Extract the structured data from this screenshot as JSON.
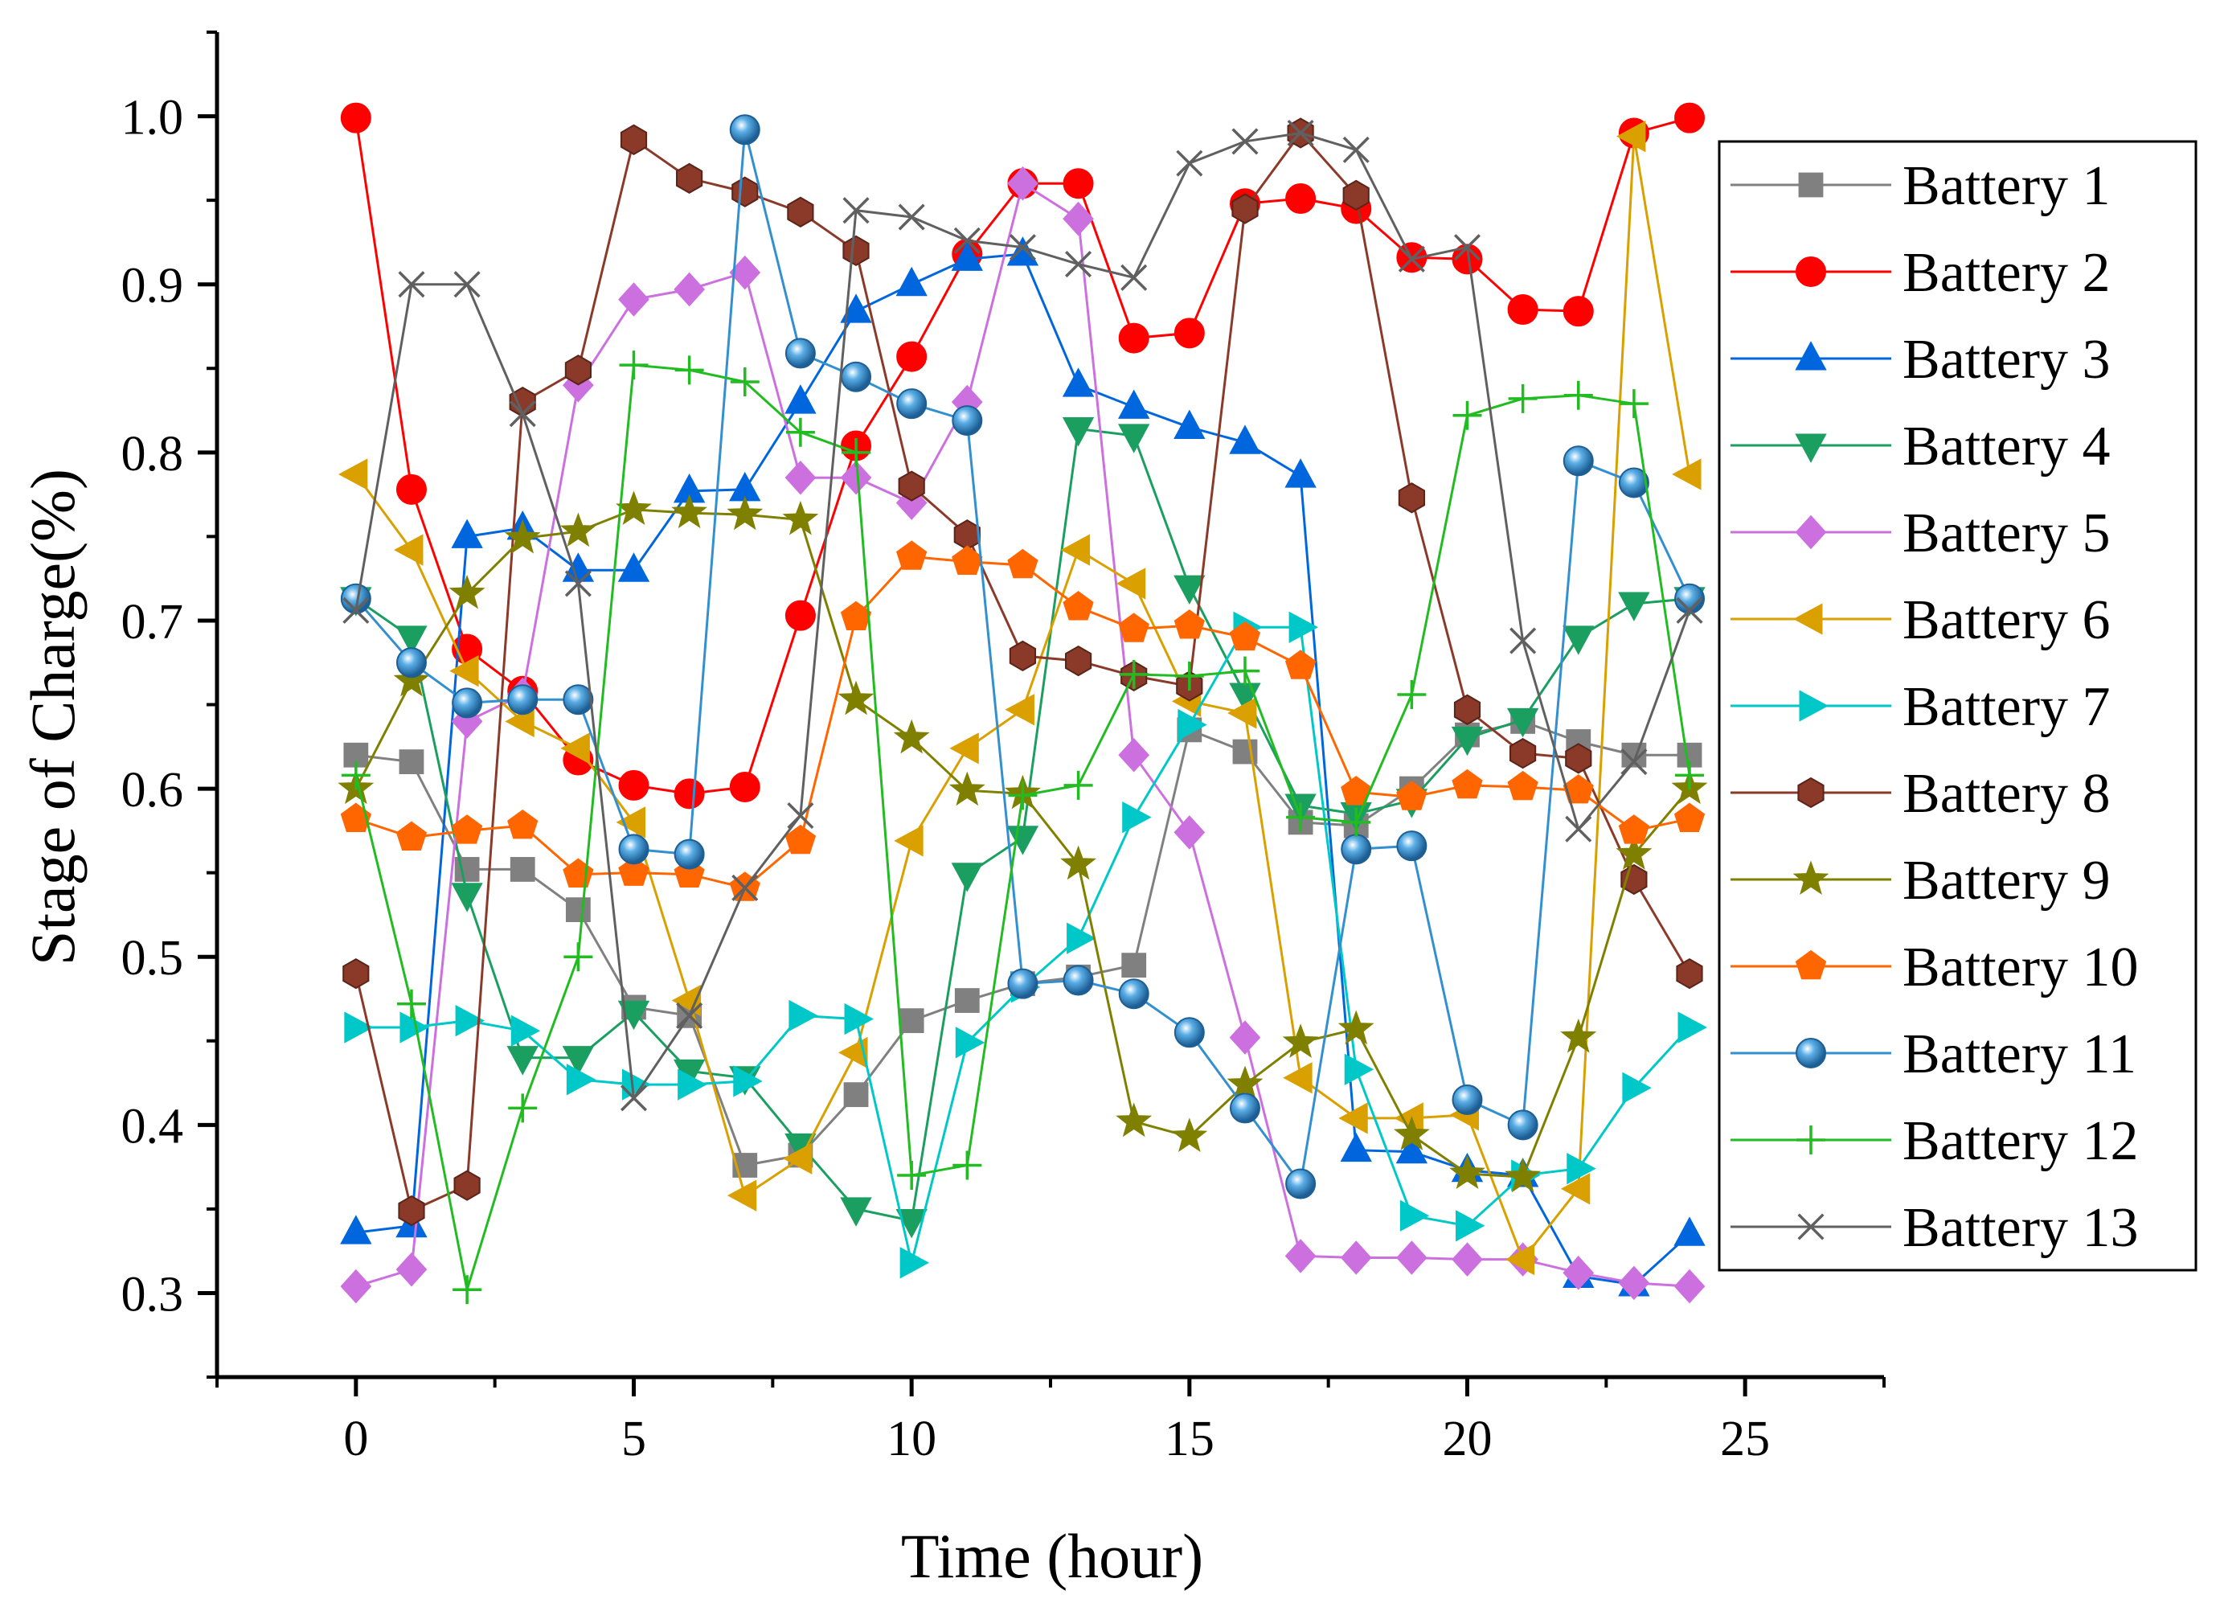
{
  "chart_data": {
    "type": "line",
    "title": "",
    "xlabel": "Time (hour)",
    "ylabel": "Stage of Charge(%)",
    "xlim": [
      -2.5,
      27.5
    ],
    "ylim": [
      0.25,
      1.05
    ],
    "xticks": [
      0,
      5,
      10,
      15,
      20,
      25
    ],
    "yticks": [
      0.3,
      0.4,
      0.5,
      0.6,
      0.7,
      0.8,
      0.9,
      1.0
    ],
    "xtick_labels": [
      "0",
      "5",
      "10",
      "15",
      "20",
      "25"
    ],
    "ytick_labels": [
      "0.3",
      "0.4",
      "0.5",
      "0.6",
      "0.7",
      "0.8",
      "0.9",
      "1.0"
    ],
    "grid": false,
    "legend_position": "right",
    "x": [
      0,
      1,
      2,
      3,
      4,
      5,
      6,
      7,
      8,
      9,
      10,
      11,
      12,
      13,
      14,
      15,
      16,
      17,
      18,
      19,
      20,
      21,
      22,
      23,
      24
    ],
    "series": [
      {
        "name": "Battery 1",
        "color": "#808080",
        "marker": "square",
        "values": [
          0.62,
          0.616,
          0.552,
          0.552,
          0.528,
          0.47,
          0.465,
          0.376,
          0.382,
          0.418,
          0.462,
          0.474,
          0.484,
          0.488,
          0.495,
          0.635,
          0.622,
          0.58,
          0.578,
          0.6,
          0.632,
          0.64,
          0.628,
          0.62,
          0.62
        ]
      },
      {
        "name": "Battery 2",
        "color": "#ff0000",
        "marker": "circle",
        "values": [
          0.999,
          0.778,
          0.683,
          0.658,
          0.617,
          0.602,
          0.597,
          0.601,
          0.703,
          0.804,
          0.857,
          0.918,
          0.96,
          0.96,
          0.868,
          0.871,
          0.948,
          0.951,
          0.945,
          0.916,
          0.915,
          0.885,
          0.884,
          0.99,
          0.999
        ]
      },
      {
        "name": "Battery 3",
        "color": "#0066dd",
        "marker": "triangle-up",
        "values": [
          0.336,
          0.34,
          0.75,
          0.755,
          0.73,
          0.73,
          0.777,
          0.778,
          0.83,
          0.884,
          0.9,
          0.915,
          0.918,
          0.84,
          0.827,
          0.815,
          0.806,
          0.786,
          0.385,
          0.384,
          0.373,
          0.37,
          0.31,
          0.305,
          0.335
        ]
      },
      {
        "name": "Battery 4",
        "color": "#1a9f60",
        "marker": "triangle-down",
        "values": [
          0.713,
          0.69,
          0.537,
          0.44,
          0.44,
          0.467,
          0.432,
          0.428,
          0.388,
          0.35,
          0.343,
          0.549,
          0.571,
          0.814,
          0.81,
          0.72,
          0.656,
          0.59,
          0.585,
          0.593,
          0.63,
          0.641,
          0.69,
          0.71,
          0.713
        ]
      },
      {
        "name": "Battery 5",
        "color": "#cc70e0",
        "marker": "diamond",
        "values": [
          0.304,
          0.314,
          0.64,
          0.656,
          0.84,
          0.891,
          0.897,
          0.907,
          0.785,
          0.785,
          0.77,
          0.83,
          0.96,
          0.939,
          0.62,
          0.574,
          0.452,
          0.322,
          0.321,
          0.321,
          0.32,
          0.32,
          0.312,
          0.306,
          0.304
        ]
      },
      {
        "name": "Battery 6",
        "color": "#d9a000",
        "marker": "triangle-left",
        "values": [
          0.787,
          0.742,
          0.67,
          0.64,
          0.624,
          0.58,
          0.474,
          0.358,
          0.38,
          0.443,
          0.569,
          0.624,
          0.647,
          0.742,
          0.722,
          0.652,
          0.645,
          0.428,
          0.404,
          0.404,
          0.406,
          0.32,
          0.362,
          0.988,
          0.787
        ]
      },
      {
        "name": "Battery 7",
        "color": "#00c8c8",
        "marker": "triangle-right",
        "values": [
          0.458,
          0.458,
          0.462,
          0.456,
          0.427,
          0.424,
          0.424,
          0.426,
          0.465,
          0.463,
          0.318,
          0.449,
          0.482,
          0.511,
          0.583,
          0.638,
          0.696,
          0.696,
          0.433,
          0.346,
          0.34,
          0.37,
          0.374,
          0.422,
          0.458
        ]
      },
      {
        "name": "Battery 8",
        "color": "#8b3a2a",
        "marker": "hexagon",
        "values": [
          0.49,
          0.349,
          0.364,
          0.83,
          0.849,
          0.986,
          0.963,
          0.955,
          0.943,
          0.92,
          0.78,
          0.751,
          0.679,
          0.676,
          0.667,
          0.661,
          0.945,
          0.99,
          0.953,
          0.773,
          0.647,
          0.621,
          0.618,
          0.546,
          0.49
        ]
      },
      {
        "name": "Battery 9",
        "color": "#808000",
        "marker": "star",
        "values": [
          0.6,
          0.664,
          0.716,
          0.749,
          0.753,
          0.766,
          0.764,
          0.763,
          0.76,
          0.653,
          0.63,
          0.599,
          0.597,
          0.555,
          0.402,
          0.393,
          0.424,
          0.449,
          0.457,
          0.394,
          0.371,
          0.369,
          0.452,
          0.561,
          0.6
        ]
      },
      {
        "name": "Battery 10",
        "color": "#ff6600",
        "marker": "pentagon",
        "values": [
          0.582,
          0.571,
          0.575,
          0.578,
          0.549,
          0.55,
          0.549,
          0.541,
          0.569,
          0.702,
          0.738,
          0.735,
          0.733,
          0.708,
          0.695,
          0.697,
          0.69,
          0.673,
          0.598,
          0.595,
          0.602,
          0.601,
          0.599,
          0.575,
          0.582
        ]
      },
      {
        "name": "Battery 11",
        "color": "#3390d0",
        "marker": "ball",
        "values": [
          0.713,
          0.675,
          0.651,
          0.653,
          0.653,
          0.564,
          0.561,
          0.992,
          0.859,
          0.845,
          0.829,
          0.819,
          0.484,
          0.486,
          0.478,
          0.455,
          0.41,
          0.365,
          0.564,
          0.566,
          0.415,
          0.4,
          0.795,
          0.782,
          0.713
        ]
      },
      {
        "name": "Battery 12",
        "color": "#22bb22",
        "marker": "plus",
        "values": [
          0.608,
          0.472,
          0.302,
          0.41,
          0.5,
          0.852,
          0.849,
          0.842,
          0.812,
          0.8,
          0.37,
          0.376,
          0.596,
          0.602,
          0.668,
          0.667,
          0.67,
          0.583,
          0.58,
          0.656,
          0.822,
          0.832,
          0.834,
          0.829,
          0.608
        ]
      },
      {
        "name": "Battery 13",
        "color": "#606060",
        "marker": "cross",
        "values": [
          0.706,
          0.9,
          0.9,
          0.823,
          0.722,
          0.416,
          0.465,
          0.541,
          0.584,
          0.944,
          0.94,
          0.926,
          0.922,
          0.912,
          0.904,
          0.972,
          0.985,
          0.99,
          0.98,
          0.915,
          0.922,
          0.688,
          0.576,
          0.616,
          0.706
        ]
      }
    ]
  }
}
